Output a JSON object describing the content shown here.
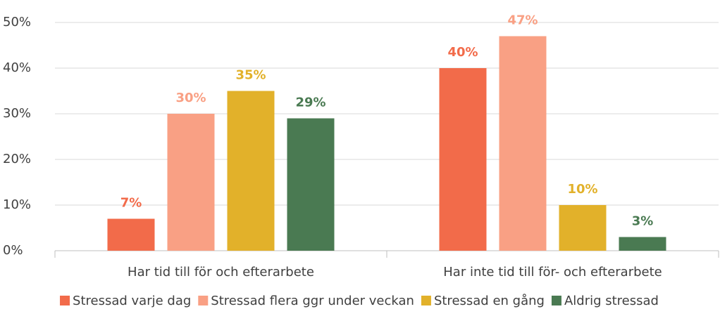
{
  "chart_data": {
    "type": "bar",
    "categories": [
      "Har tid till för och efterarbete",
      "Har inte tid till för- och efterarbete"
    ],
    "series": [
      {
        "name": "Stressad varje dag",
        "color": "#f26b4a",
        "values": [
          7,
          40
        ],
        "value_labels": [
          "7%",
          "40%"
        ]
      },
      {
        "name": "Stressad flera ggr under veckan",
        "color": "#f9a084",
        "values": [
          30,
          47
        ],
        "value_labels": [
          "30%",
          "47%"
        ]
      },
      {
        "name": "Stressad en gång",
        "color": "#e2b12a",
        "values": [
          35,
          10
        ],
        "value_labels": [
          "35%",
          "10%"
        ]
      },
      {
        "name": "Aldrig stressad",
        "color": "#4a7a52",
        "values": [
          29,
          3
        ],
        "value_labels": [
          "29%",
          "3%"
        ]
      }
    ],
    "ylim": [
      0,
      50
    ],
    "yticks": [
      {
        "value": 0,
        "label": "0%"
      },
      {
        "value": 10,
        "label": "10%"
      },
      {
        "value": 20,
        "label": "20%"
      },
      {
        "value": 30,
        "label": "30%"
      },
      {
        "value": 40,
        "label": "40%"
      },
      {
        "value": 50,
        "label": "50%"
      }
    ],
    "grid": true,
    "legend": "bottom"
  }
}
